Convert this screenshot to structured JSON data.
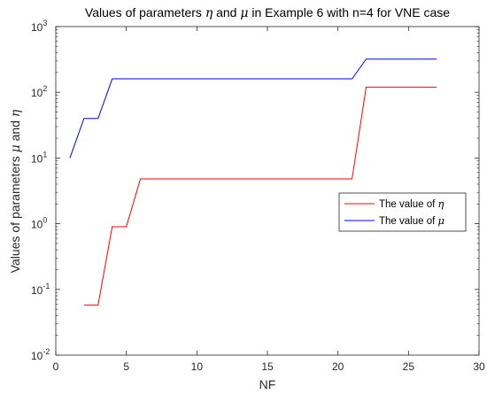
{
  "chart_data": {
    "type": "line",
    "title": {
      "prefix": "Values of parameters ",
      "sym1": "η",
      "mid": " and ",
      "sym2": "μ",
      "suffix": " in Example 6 with n=4 for VNE case"
    },
    "xlabel": "NF",
    "ylabel": {
      "prefix": "Values of parameters ",
      "sym1": "μ",
      "mid": " and ",
      "sym2": "η"
    },
    "xlim": [
      0,
      30
    ],
    "ylim": [
      0.01,
      1000
    ],
    "yscale": "log",
    "grid": false,
    "legend_position": "right",
    "x_ticks": [
      0,
      5,
      10,
      15,
      20,
      25,
      30
    ],
    "y_ticks": [
      {
        "value": 0.01,
        "mantissa": "10",
        "exp": "-2"
      },
      {
        "value": 0.1,
        "mantissa": "10",
        "exp": "-1"
      },
      {
        "value": 1,
        "mantissa": "10",
        "exp": "0"
      },
      {
        "value": 10,
        "mantissa": "10",
        "exp": "1"
      },
      {
        "value": 100,
        "mantissa": "10",
        "exp": "2"
      },
      {
        "value": 1000,
        "mantissa": "10",
        "exp": "3"
      }
    ],
    "series": [
      {
        "name_prefix": "The value of ",
        "name_sym": "η",
        "color": "#ff0000",
        "x": [
          2,
          3,
          4,
          5,
          6,
          7,
          8,
          9,
          10,
          11,
          12,
          13,
          14,
          15,
          16,
          17,
          18,
          19,
          20,
          21,
          22,
          23,
          24,
          25,
          26,
          27
        ],
        "y": [
          0.058,
          0.058,
          0.9,
          0.9,
          4.8,
          4.8,
          4.8,
          4.8,
          4.8,
          4.8,
          4.8,
          4.8,
          4.8,
          4.8,
          4.8,
          4.8,
          4.8,
          4.8,
          4.8,
          4.8,
          120,
          120,
          120,
          120,
          120,
          120
        ]
      },
      {
        "name_prefix": "The value of ",
        "name_sym": "μ",
        "color": "#0000ff",
        "x": [
          1,
          2,
          3,
          4,
          5,
          6,
          7,
          8,
          9,
          10,
          11,
          12,
          13,
          14,
          15,
          16,
          17,
          18,
          19,
          20,
          21,
          22,
          23,
          24,
          25,
          26,
          27
        ],
        "y": [
          10,
          40,
          40,
          160,
          160,
          160,
          160,
          160,
          160,
          160,
          160,
          160,
          160,
          160,
          160,
          160,
          160,
          160,
          160,
          160,
          160,
          320,
          320,
          320,
          320,
          320,
          320
        ]
      }
    ]
  }
}
